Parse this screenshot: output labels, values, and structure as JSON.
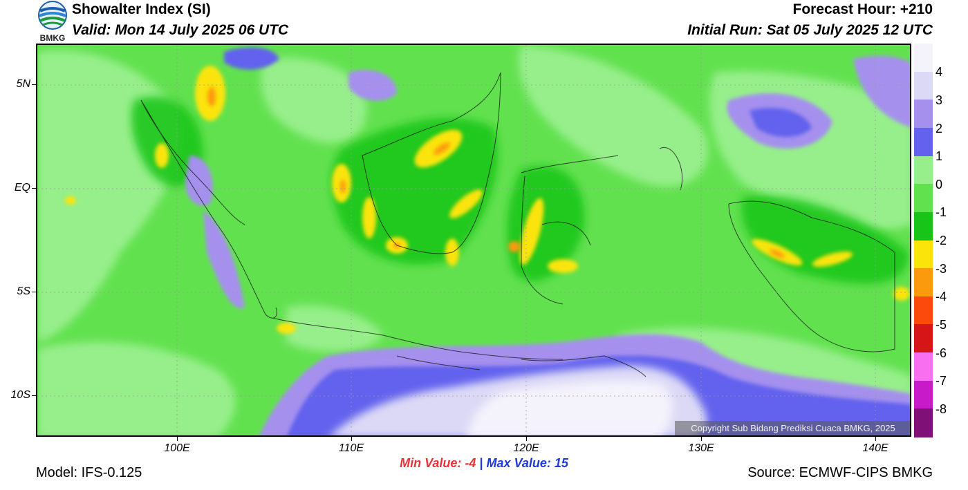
{
  "header": {
    "title": "Showalter Index (SI)",
    "valid": "Valid: Mon 14 July 2025 06 UTC",
    "forecast_hour": "Forecast Hour: +210",
    "initial_run": "Initial Run: Sat 05 July 2025 12 UTC",
    "logo_text": "BMKG"
  },
  "map": {
    "lat_labels": [
      "5N",
      "EQ",
      "5S",
      "10S"
    ],
    "lon_labels": [
      "100E",
      "110E",
      "120E",
      "130E",
      "140E"
    ],
    "copyright": "Copyright Sub Bidang Prediksi Cuaca BMKG, 2025"
  },
  "colorbar": {
    "labels": [
      "4",
      "3",
      "2",
      "1",
      "0",
      "-1",
      "-2",
      "-3",
      "-4",
      "-5",
      "-6",
      "-7",
      "-8"
    ],
    "colors": [
      "#f4f2fb",
      "#dcd9f6",
      "#a590ee",
      "#6262ee",
      "#97ef8b",
      "#62e14f",
      "#17c417",
      "#fbe40a",
      "#fb9a0c",
      "#fb4a0c",
      "#d61616",
      "#f870ef",
      "#c81ac8",
      "#7e1077"
    ]
  },
  "stats": {
    "min_label": "Min Value:  -4",
    "separator": "|",
    "max_label": "Max Value:  15",
    "min_color": "#e8323a",
    "max_color": "#1f39d8"
  },
  "footer": {
    "model": "Model: IFS-0.125",
    "source": "Source: ECMWF-CIPS BMKG"
  }
}
